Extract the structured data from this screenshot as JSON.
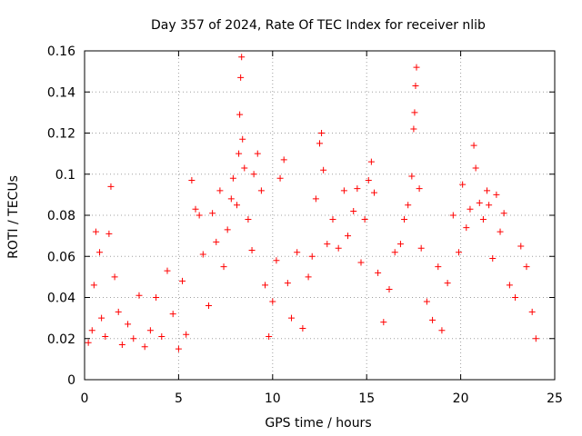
{
  "chart_data": {
    "type": "scatter",
    "title": "Day 357 of 2024, Rate Of TEC Index for receiver nlib",
    "xlabel": "GPS time / hours",
    "ylabel": "ROTI / TECUs",
    "xlim": [
      0,
      25
    ],
    "ylim": [
      0,
      0.16
    ],
    "xticks": [
      0,
      5,
      10,
      15,
      20,
      25
    ],
    "xtick_labels": [
      "0",
      "5",
      "10",
      "15",
      "20",
      "25"
    ],
    "yticks": [
      0,
      0.02,
      0.04,
      0.06,
      0.08,
      0.1,
      0.12,
      0.14,
      0.16
    ],
    "ytick_labels": [
      "0",
      "0.02",
      "0.04",
      "0.06",
      "0.08",
      "0.1",
      "0.12",
      "0.14",
      "0.16"
    ],
    "grid": true,
    "marker": "+",
    "color": "#ff0000",
    "series": [
      {
        "name": "ROTI",
        "points": [
          [
            0.2,
            0.018
          ],
          [
            0.4,
            0.024
          ],
          [
            0.5,
            0.046
          ],
          [
            0.6,
            0.072
          ],
          [
            0.8,
            0.062
          ],
          [
            0.9,
            0.03
          ],
          [
            1.1,
            0.021
          ],
          [
            1.3,
            0.071
          ],
          [
            1.4,
            0.094
          ],
          [
            1.6,
            0.05
          ],
          [
            1.8,
            0.033
          ],
          [
            2.0,
            0.017
          ],
          [
            2.3,
            0.027
          ],
          [
            2.6,
            0.02
          ],
          [
            2.9,
            0.041
          ],
          [
            3.2,
            0.016
          ],
          [
            3.5,
            0.024
          ],
          [
            3.8,
            0.04
          ],
          [
            4.1,
            0.021
          ],
          [
            4.4,
            0.053
          ],
          [
            4.7,
            0.032
          ],
          [
            5.0,
            0.015
          ],
          [
            5.2,
            0.048
          ],
          [
            5.4,
            0.022
          ],
          [
            5.7,
            0.097
          ],
          [
            5.9,
            0.083
          ],
          [
            6.1,
            0.08
          ],
          [
            6.3,
            0.061
          ],
          [
            6.6,
            0.036
          ],
          [
            6.8,
            0.081
          ],
          [
            7.0,
            0.067
          ],
          [
            7.2,
            0.092
          ],
          [
            7.4,
            0.055
          ],
          [
            7.6,
            0.073
          ],
          [
            7.8,
            0.088
          ],
          [
            7.9,
            0.098
          ],
          [
            8.1,
            0.085
          ],
          [
            8.2,
            0.11
          ],
          [
            8.25,
            0.129
          ],
          [
            8.3,
            0.147
          ],
          [
            8.35,
            0.157
          ],
          [
            8.4,
            0.117
          ],
          [
            8.5,
            0.103
          ],
          [
            8.7,
            0.078
          ],
          [
            8.9,
            0.063
          ],
          [
            9.0,
            0.1
          ],
          [
            9.2,
            0.11
          ],
          [
            9.4,
            0.092
          ],
          [
            9.6,
            0.046
          ],
          [
            9.8,
            0.021
          ],
          [
            10.0,
            0.038
          ],
          [
            10.2,
            0.058
          ],
          [
            10.4,
            0.098
          ],
          [
            10.6,
            0.107
          ],
          [
            10.8,
            0.047
          ],
          [
            11.0,
            0.03
          ],
          [
            11.3,
            0.062
          ],
          [
            11.6,
            0.025
          ],
          [
            11.9,
            0.05
          ],
          [
            12.1,
            0.06
          ],
          [
            12.3,
            0.088
          ],
          [
            12.5,
            0.115
          ],
          [
            12.6,
            0.12
          ],
          [
            12.7,
            0.102
          ],
          [
            12.9,
            0.066
          ],
          [
            13.2,
            0.078
          ],
          [
            13.5,
            0.064
          ],
          [
            13.8,
            0.092
          ],
          [
            14.0,
            0.07
          ],
          [
            14.3,
            0.082
          ],
          [
            14.5,
            0.093
          ],
          [
            14.7,
            0.057
          ],
          [
            14.9,
            0.078
          ],
          [
            15.1,
            0.097
          ],
          [
            15.25,
            0.106
          ],
          [
            15.4,
            0.091
          ],
          [
            15.6,
            0.052
          ],
          [
            15.9,
            0.028
          ],
          [
            16.2,
            0.044
          ],
          [
            16.5,
            0.062
          ],
          [
            16.8,
            0.066
          ],
          [
            17.0,
            0.078
          ],
          [
            17.2,
            0.085
          ],
          [
            17.4,
            0.099
          ],
          [
            17.5,
            0.122
          ],
          [
            17.55,
            0.13
          ],
          [
            17.6,
            0.143
          ],
          [
            17.65,
            0.152
          ],
          [
            17.8,
            0.093
          ],
          [
            17.9,
            0.064
          ],
          [
            18.2,
            0.038
          ],
          [
            18.5,
            0.029
          ],
          [
            18.8,
            0.055
          ],
          [
            19.0,
            0.024
          ],
          [
            19.3,
            0.047
          ],
          [
            19.6,
            0.08
          ],
          [
            19.9,
            0.062
          ],
          [
            20.1,
            0.095
          ],
          [
            20.3,
            0.074
          ],
          [
            20.5,
            0.083
          ],
          [
            20.7,
            0.114
          ],
          [
            20.8,
            0.103
          ],
          [
            21.0,
            0.086
          ],
          [
            21.2,
            0.078
          ],
          [
            21.4,
            0.092
          ],
          [
            21.5,
            0.085
          ],
          [
            21.7,
            0.059
          ],
          [
            21.9,
            0.09
          ],
          [
            22.1,
            0.072
          ],
          [
            22.3,
            0.081
          ],
          [
            22.6,
            0.046
          ],
          [
            22.9,
            0.04
          ],
          [
            23.2,
            0.065
          ],
          [
            23.5,
            0.055
          ],
          [
            23.8,
            0.033
          ],
          [
            24.0,
            0.02
          ]
        ]
      }
    ]
  }
}
